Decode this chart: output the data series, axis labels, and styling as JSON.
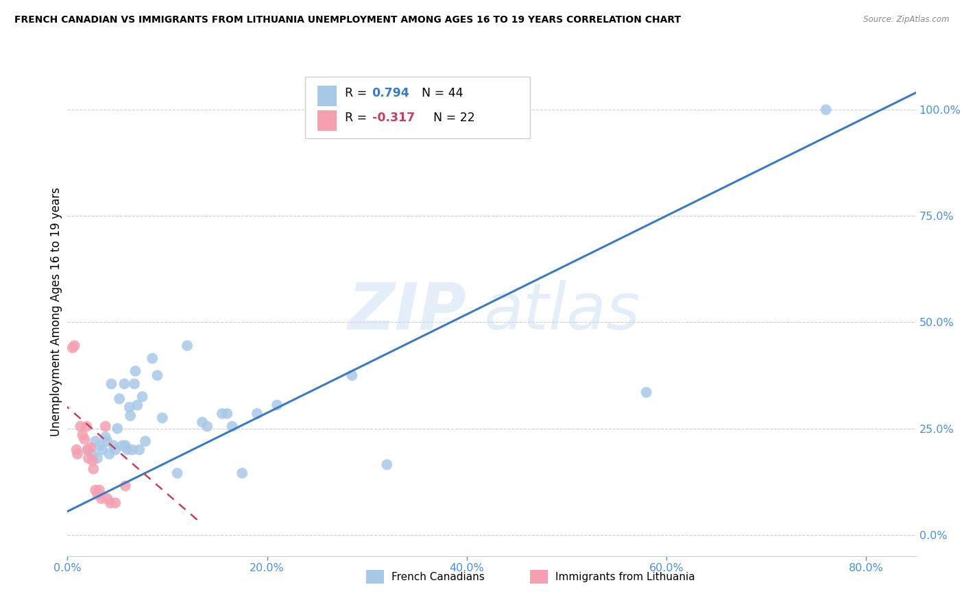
{
  "title": "FRENCH CANADIAN VS IMMIGRANTS FROM LITHUANIA UNEMPLOYMENT AMONG AGES 16 TO 19 YEARS CORRELATION CHART",
  "source": "Source: ZipAtlas.com",
  "ylabel": "Unemployment Among Ages 16 to 19 years",
  "xlim": [
    0.0,
    0.85
  ],
  "ylim": [
    -0.05,
    1.1
  ],
  "xtick_vals": [
    0.0,
    0.2,
    0.4,
    0.6,
    0.8
  ],
  "xtick_labels": [
    "0.0%",
    "20.0%",
    "40.0%",
    "60.0%",
    "80.0%"
  ],
  "ytick_vals": [
    0.0,
    0.25,
    0.5,
    0.75,
    1.0
  ],
  "ytick_labels": [
    "0.0%",
    "25.0%",
    "50.0%",
    "75.0%",
    "100.0%"
  ],
  "blue_R": "0.794",
  "blue_N": "44",
  "pink_R": "-0.317",
  "pink_N": "22",
  "blue_color": "#a8c8e8",
  "pink_color": "#f4a0b0",
  "blue_line_color": "#3a7abf",
  "pink_line_color": "#c04060",
  "tick_color": "#4a90d9",
  "legend_blue_label": "French Canadians",
  "legend_pink_label": "Immigrants from Lithuania",
  "watermark_zip": "ZIP",
  "watermark_atlas": "atlas",
  "blue_scatter_x": [
    0.02,
    0.025,
    0.028,
    0.03,
    0.032,
    0.035,
    0.038,
    0.04,
    0.042,
    0.044,
    0.046,
    0.048,
    0.05,
    0.052,
    0.055,
    0.057,
    0.058,
    0.06,
    0.062,
    0.063,
    0.065,
    0.067,
    0.068,
    0.07,
    0.072,
    0.075,
    0.078,
    0.085,
    0.09,
    0.095,
    0.11,
    0.12,
    0.135,
    0.14,
    0.155,
    0.16,
    0.165,
    0.175,
    0.19,
    0.21,
    0.285,
    0.32,
    0.58,
    0.76
  ],
  "blue_scatter_y": [
    0.2,
    0.19,
    0.22,
    0.18,
    0.21,
    0.2,
    0.23,
    0.22,
    0.19,
    0.355,
    0.21,
    0.2,
    0.25,
    0.32,
    0.21,
    0.355,
    0.21,
    0.2,
    0.3,
    0.28,
    0.2,
    0.355,
    0.385,
    0.305,
    0.2,
    0.325,
    0.22,
    0.415,
    0.375,
    0.275,
    0.145,
    0.445,
    0.265,
    0.255,
    0.285,
    0.285,
    0.255,
    0.145,
    0.285,
    0.305,
    0.375,
    0.165,
    0.335,
    1.0
  ],
  "pink_scatter_x": [
    0.005,
    0.007,
    0.009,
    0.01,
    0.013,
    0.015,
    0.017,
    0.019,
    0.02,
    0.021,
    0.023,
    0.025,
    0.026,
    0.028,
    0.03,
    0.032,
    0.034,
    0.038,
    0.04,
    0.043,
    0.048,
    0.058
  ],
  "pink_scatter_y": [
    0.44,
    0.445,
    0.2,
    0.19,
    0.255,
    0.235,
    0.225,
    0.255,
    0.2,
    0.18,
    0.205,
    0.175,
    0.155,
    0.105,
    0.095,
    0.105,
    0.085,
    0.255,
    0.085,
    0.075,
    0.075,
    0.115
  ],
  "blue_line_x": [
    0.0,
    0.85
  ],
  "blue_line_y": [
    0.055,
    1.04
  ],
  "pink_line_x": [
    -0.005,
    0.135
  ],
  "pink_line_y": [
    0.31,
    0.025
  ]
}
